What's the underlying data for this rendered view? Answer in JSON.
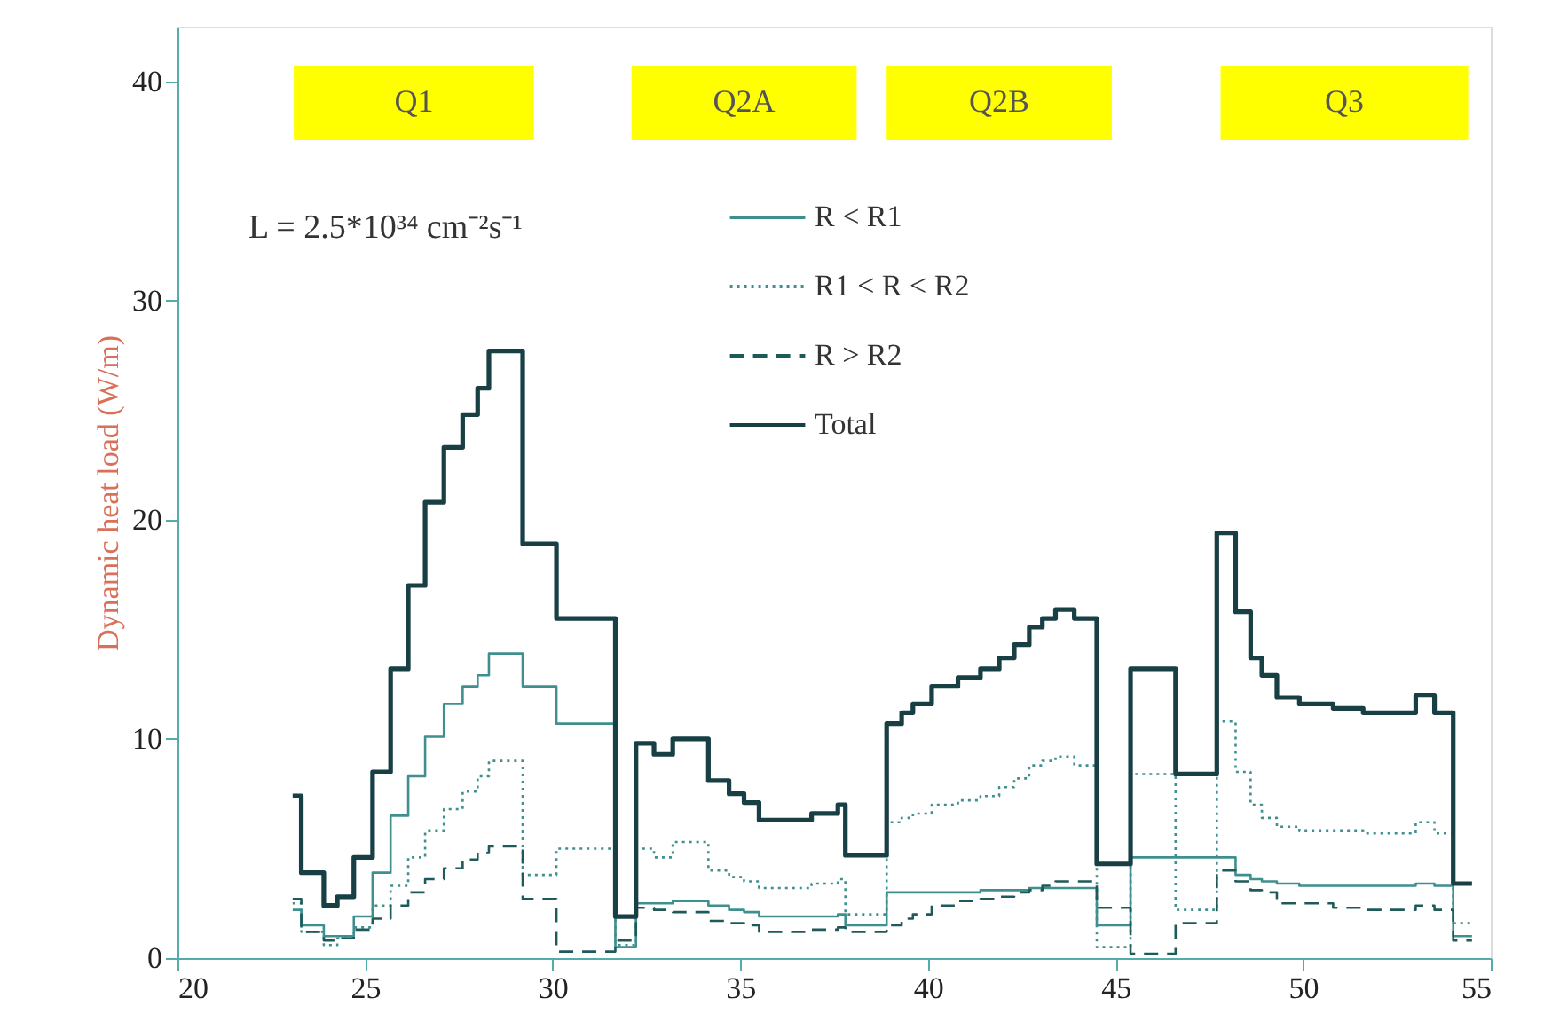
{
  "chart_data": {
    "type": "step",
    "ylabel": "Dynamic heat load (W/m)",
    "xlim": [
      20,
      55
    ],
    "xticks": [
      20,
      25,
      30,
      35,
      40,
      45,
      50,
      55
    ],
    "ylim": [
      0,
      42.5
    ],
    "yticks": [
      0,
      10,
      20,
      30,
      40
    ],
    "legend": "top",
    "x": [
      23.07,
      23.3,
      23.9,
      24.26,
      24.7,
      25.2,
      25.68,
      26.15,
      26.6,
      27.1,
      27.6,
      28.0,
      28.3,
      29.2,
      30.1,
      31.67,
      32.22,
      32.7,
      33.2,
      34.15,
      34.7,
      35.1,
      35.5,
      36.9,
      37.6,
      37.8,
      38.9,
      39.3,
      39.6,
      40.1,
      40.8,
      41.4,
      41.9,
      42.3,
      42.7,
      43.05,
      43.4,
      43.9,
      44.5,
      45.4,
      46.6,
      47.7,
      48.2,
      48.6,
      48.9,
      49.3,
      49.9,
      50.8,
      51.6,
      53.0,
      53.5,
      54.0,
      54.5
    ],
    "series": [
      {
        "name": "R < R1",
        "color": "#3f8f8f",
        "line_style": "solid",
        "values": [
          2.2,
          1.5,
          1.0,
          1.0,
          1.9,
          3.9,
          6.5,
          8.3,
          10.1,
          11.6,
          12.4,
          12.9,
          13.9,
          12.4,
          10.7,
          0.5,
          2.5,
          2.5,
          2.6,
          2.4,
          2.2,
          2.1,
          1.9,
          1.9,
          2.0,
          1.5,
          3.0,
          3.0,
          3.0,
          3.0,
          3.0,
          3.1,
          3.1,
          3.1,
          3.2,
          3.2,
          3.2,
          3.2,
          1.5,
          4.6,
          4.6,
          4.6,
          3.8,
          3.6,
          3.5,
          3.4,
          3.3,
          3.3,
          3.3,
          3.4,
          3.3,
          1.0,
          1.0
        ]
      },
      {
        "name": "R1 < R < R2",
        "color": "#3f8f8f",
        "line_style": "dotted",
        "values": [
          2.5,
          1.2,
          0.6,
          0.9,
          1.4,
          2.4,
          3.3,
          4.6,
          5.8,
          6.8,
          7.6,
          8.3,
          9.0,
          3.8,
          5.0,
          0.6,
          5.0,
          4.6,
          5.3,
          4.0,
          3.7,
          3.5,
          3.2,
          3.4,
          3.6,
          2.0,
          6.2,
          6.4,
          6.6,
          7.0,
          7.2,
          7.4,
          7.8,
          8.2,
          8.8,
          9.0,
          9.2,
          8.8,
          0.5,
          8.4,
          2.2,
          10.8,
          8.5,
          7.0,
          6.4,
          6.0,
          5.8,
          5.8,
          5.7,
          6.2,
          5.7,
          1.6,
          1.6
        ]
      },
      {
        "name": "R > R2",
        "color": "#1f5a5a",
        "line_style": "dashed",
        "values": [
          2.7,
          1.2,
          0.8,
          0.9,
          1.3,
          1.8,
          2.4,
          3.0,
          3.6,
          4.1,
          4.5,
          4.8,
          5.1,
          2.7,
          0.3,
          0.8,
          2.3,
          2.2,
          2.1,
          1.7,
          1.6,
          1.5,
          1.2,
          1.3,
          1.4,
          1.2,
          1.5,
          1.8,
          2.0,
          2.4,
          2.6,
          2.7,
          2.8,
          3.0,
          3.1,
          3.3,
          3.5,
          3.5,
          2.3,
          0.2,
          1.6,
          4.0,
          3.5,
          3.1,
          3.0,
          2.5,
          2.5,
          2.3,
          2.2,
          2.4,
          2.2,
          0.8,
          0.8
        ]
      },
      {
        "name": "Total",
        "color": "#173f44",
        "line_style": "solid",
        "values": [
          7.4,
          3.9,
          2.4,
          2.8,
          4.6,
          8.5,
          13.2,
          17.0,
          20.8,
          23.3,
          24.8,
          26.0,
          27.7,
          18.9,
          15.5,
          1.9,
          9.8,
          9.3,
          10.0,
          8.1,
          7.5,
          7.1,
          6.3,
          6.6,
          7.0,
          4.7,
          10.7,
          11.2,
          11.6,
          12.4,
          12.8,
          13.2,
          13.7,
          14.3,
          15.1,
          15.5,
          15.9,
          15.5,
          4.3,
          13.2,
          8.4,
          19.4,
          15.8,
          13.7,
          12.9,
          11.9,
          11.6,
          11.4,
          11.2,
          12.0,
          11.2,
          3.4,
          3.4
        ]
      }
    ],
    "bands": [
      {
        "axis": "x",
        "from": 23.1,
        "to": 29.5,
        "label": "Q1",
        "color": "#ffff00"
      },
      {
        "axis": "x",
        "from": 32.1,
        "to": 38.1,
        "label": "Q2A",
        "color": "#ffff00"
      },
      {
        "axis": "x",
        "from": 38.9,
        "to": 44.9,
        "label": "Q2B",
        "color": "#ffff00"
      },
      {
        "axis": "x",
        "from": 47.8,
        "to": 54.4,
        "label": "Q3",
        "color": "#ffff00"
      }
    ],
    "annotations": [
      "L = 2.5*10³⁴ cm⁻²s⁻¹"
    ]
  }
}
